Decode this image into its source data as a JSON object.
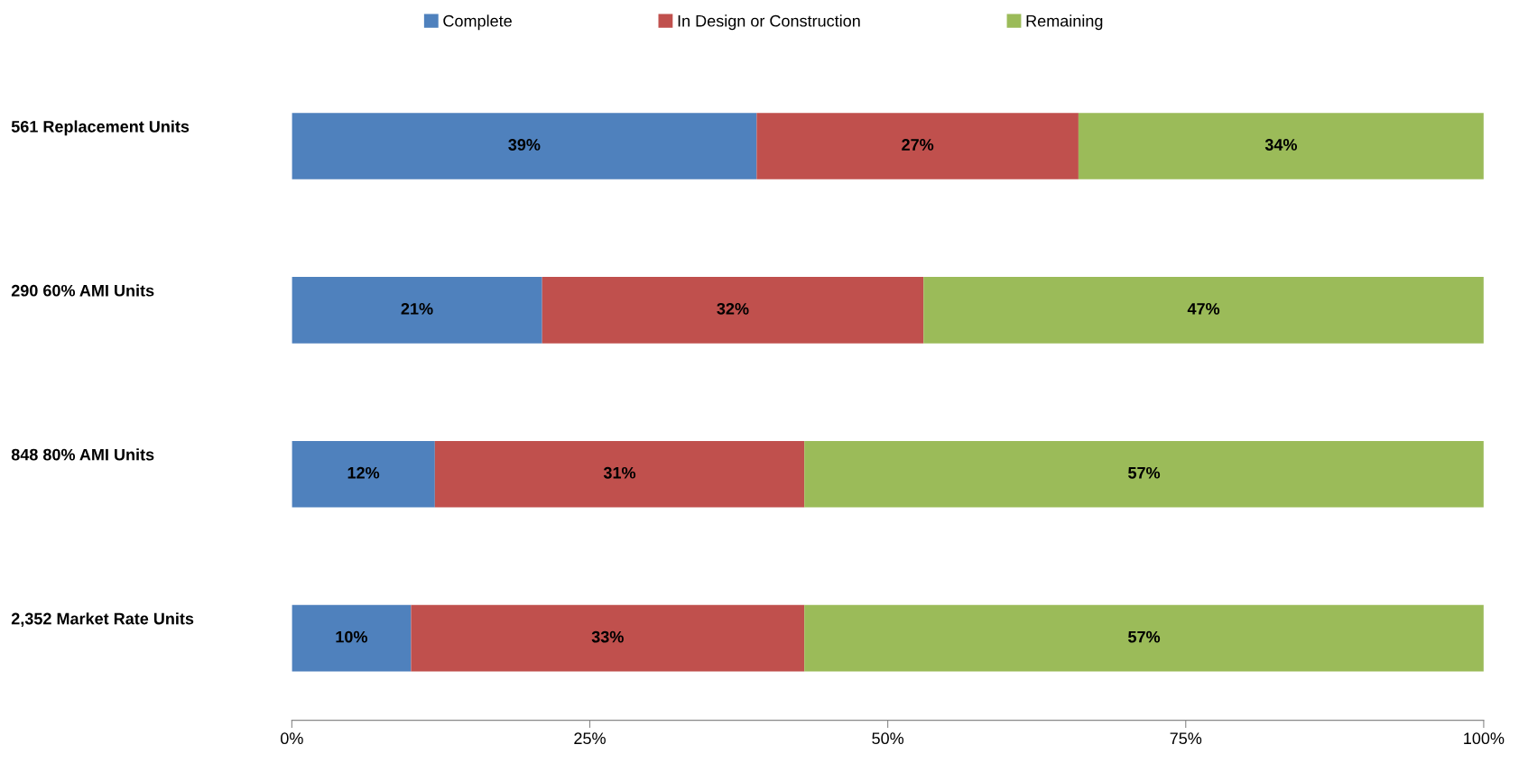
{
  "chart_data": {
    "type": "bar",
    "orientation": "horizontal",
    "stacked": true,
    "categories": [
      "561 Replacement Units",
      "290 60% AMI Units",
      "848 80% AMI Units",
      "2,352 Market Rate Units"
    ],
    "series": [
      {
        "name": "Complete",
        "color": "#4f81bd",
        "values": [
          39,
          21,
          12,
          10
        ],
        "value_labels": [
          "39%",
          "21%",
          "12%",
          "10%"
        ]
      },
      {
        "name": "In Design or Construction",
        "color": "#c0504d",
        "values": [
          27,
          32,
          31,
          33
        ],
        "value_labels": [
          "27%",
          "32%",
          "31%",
          "33%"
        ]
      },
      {
        "name": "Remaining",
        "color": "#9bbb59",
        "values": [
          34,
          47,
          57,
          57
        ],
        "value_labels": [
          "34%",
          "47%",
          "57%",
          "57%"
        ]
      }
    ],
    "xlim": [
      0,
      100
    ],
    "xticks": [
      {
        "value": 0,
        "label": "0%"
      },
      {
        "value": 25,
        "label": "25%"
      },
      {
        "value": 50,
        "label": "50%"
      },
      {
        "value": 75,
        "label": "75%"
      },
      {
        "value": 100,
        "label": "100%"
      }
    ],
    "legend": "top",
    "grid": false
  }
}
